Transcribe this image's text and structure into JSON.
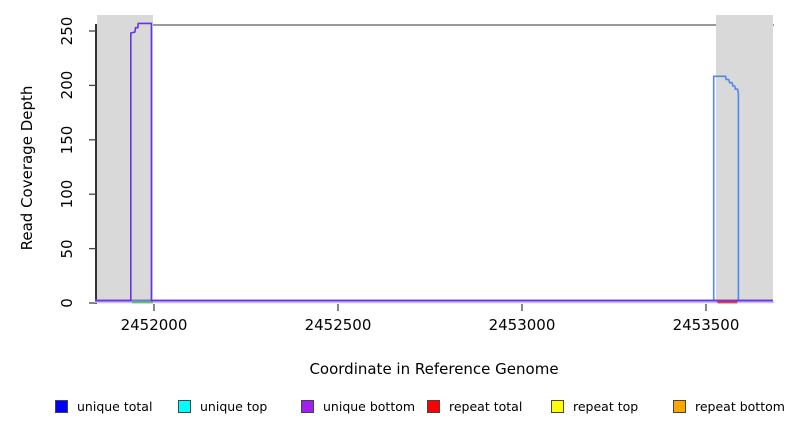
{
  "axes": {
    "x_label": "Coordinate in Reference Genome",
    "y_label": "Read Coverage Depth",
    "x_ticks": [
      {
        "value": 2452000,
        "label": "2452000"
      },
      {
        "value": 2452500,
        "label": "2452500"
      },
      {
        "value": 2453000,
        "label": "2453000"
      },
      {
        "value": 2453500,
        "label": "2453500"
      }
    ],
    "y_ticks": [
      {
        "value": 0,
        "label": "0"
      },
      {
        "value": 50,
        "label": "50"
      },
      {
        "value": 100,
        "label": "100"
      },
      {
        "value": 150,
        "label": "150"
      },
      {
        "value": 200,
        "label": "200"
      },
      {
        "value": 250,
        "label": "250"
      }
    ]
  },
  "legend": {
    "items": [
      {
        "label": "unique total",
        "color": "#0000FF"
      },
      {
        "label": "unique top",
        "color": "#00FFFF"
      },
      {
        "label": "unique bottom",
        "color": "#A020F0"
      },
      {
        "label": "repeat total",
        "color": "#FF0000"
      },
      {
        "label": "repeat top",
        "color": "#FFFF00"
      },
      {
        "label": "repeat bottom",
        "color": "#FFA500"
      }
    ]
  },
  "chart_data": {
    "type": "line",
    "title": "",
    "xlabel": "Coordinate in Reference Genome",
    "ylabel": "Read Coverage Depth",
    "xlim": [
      2451840,
      2453682
    ],
    "ylim": [
      0,
      260
    ],
    "xticks": [
      2452000,
      2452500,
      2453000,
      2453500
    ],
    "yticks": [
      0,
      50,
      100,
      150,
      200,
      250
    ],
    "grid": false,
    "legend_position": "bottom",
    "shaded_regions": [
      {
        "x0": 2451845,
        "x1": 2451997,
        "color": "#D9D9D9"
      },
      {
        "x0": 2453527,
        "x1": 2453682,
        "color": "#D9D9D9"
      }
    ],
    "series": [
      {
        "name": "unique total",
        "color": "#0000FF",
        "render_color": "#4D87F0",
        "points": [
          [
            2451840,
            0
          ],
          [
            2453521,
            0
          ],
          [
            2453521,
            208
          ],
          [
            2453553,
            208
          ],
          [
            2453555,
            205
          ],
          [
            2453562,
            205
          ],
          [
            2453564,
            202
          ],
          [
            2453571,
            202
          ],
          [
            2453573,
            199
          ],
          [
            2453578,
            199
          ],
          [
            2453580,
            196
          ],
          [
            2453586,
            196
          ],
          [
            2453588,
            192
          ],
          [
            2453588,
            0
          ],
          [
            2453682,
            0
          ]
        ]
      },
      {
        "name": "unique top",
        "color": "#00FFFF",
        "render_color": "#00FFFF",
        "points": [
          [
            2451840,
            0
          ],
          [
            2453682,
            0
          ]
        ]
      },
      {
        "name": "unique bottom",
        "color": "#A020F0",
        "render_color": "#6633EE",
        "points": [
          [
            2451840,
            0
          ],
          [
            2451937,
            0
          ],
          [
            2451937,
            248
          ],
          [
            2451948,
            249
          ],
          [
            2451950,
            253
          ],
          [
            2451956,
            253
          ],
          [
            2451957,
            257
          ],
          [
            2451993,
            257
          ],
          [
            2451993,
            0
          ],
          [
            2453682,
            0
          ]
        ]
      },
      {
        "name": "repeat total",
        "color": "#FF0000",
        "render_color": "#FF0000",
        "points": [
          [
            2451840,
            0
          ],
          [
            2453682,
            0
          ]
        ]
      },
      {
        "name": "repeat top",
        "color": "#FFFF00",
        "render_color": "#FFFF00",
        "points": [
          [
            2451840,
            0
          ],
          [
            2453682,
            0
          ]
        ]
      },
      {
        "name": "repeat bottom",
        "color": "#FFA500",
        "render_color": "#FFA500",
        "points": [
          [
            2451840,
            0
          ],
          [
            2453682,
            0
          ]
        ]
      }
    ],
    "baseline_overlap_segments": [
      {
        "x0": 2451940,
        "x1": 2451997,
        "color": "#69C36C"
      },
      {
        "x0": 2453531,
        "x1": 2453585,
        "color": "#E43B3B"
      }
    ],
    "baseline_shadow_color": "#C9BDF8"
  }
}
